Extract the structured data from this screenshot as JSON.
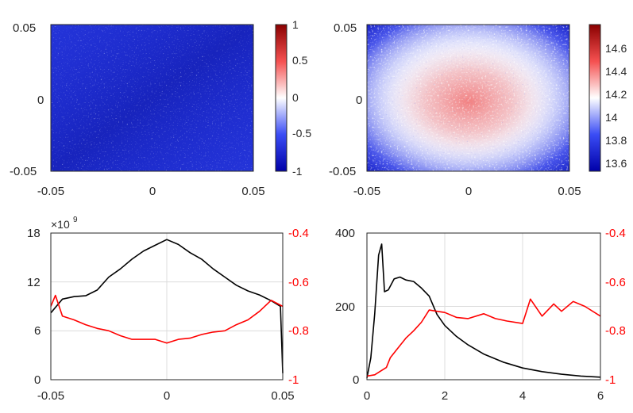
{
  "chart_data": [
    {
      "type": "heatmap",
      "panel": "top-left",
      "x_ticks": [
        "-0.05",
        "0",
        "0.05"
      ],
      "y_ticks": [
        "0.05",
        "0",
        "-0.05"
      ],
      "xlim": [
        -0.05,
        0.05
      ],
      "ylim": [
        -0.05,
        0.05
      ],
      "colorbar": {
        "range": [
          -1,
          1
        ],
        "ticks": [
          "1",
          "0.5",
          "0",
          "-0.5",
          "-1"
        ],
        "colormap": "blue-white-red"
      },
      "description_values": {
        "background": -0.85,
        "dark_band_center": -0.95
      }
    },
    {
      "type": "heatmap",
      "panel": "top-right",
      "x_ticks": [
        "-0.05",
        "0",
        "0.05"
      ],
      "y_ticks": [
        "0.05",
        "0",
        "-0.05"
      ],
      "xlim": [
        -0.05,
        0.05
      ],
      "ylim": [
        -0.05,
        0.05
      ],
      "colorbar": {
        "range": [
          13.5,
          14.8
        ],
        "ticks": [
          "14.6",
          "14.4",
          "14.2",
          "14",
          "13.8",
          "13.6"
        ],
        "colormap": "blue-white-red"
      },
      "description_values": {
        "center_peak": 14.45,
        "edge": 13.65
      }
    },
    {
      "type": "line",
      "panel": "bottom-left",
      "x_ticks": [
        "-0.05",
        "0",
        "0.05"
      ],
      "xlim": [
        -0.05,
        0.05
      ],
      "left_axis": {
        "ticks": [
          "18",
          "12",
          "6",
          "0"
        ],
        "ylim": [
          0,
          18
        ],
        "exponent_label": "×10",
        "exponent_power": "9",
        "color": "#000000"
      },
      "right_axis": {
        "ticks": [
          "-0.4",
          "-0.6",
          "-0.8",
          "-1"
        ],
        "ylim": [
          -1,
          -0.4
        ],
        "color": "#ff0000"
      },
      "series": [
        {
          "name": "left",
          "color": "#000000",
          "x": [
            -0.05,
            -0.045,
            -0.04,
            -0.035,
            -0.03,
            -0.025,
            -0.02,
            -0.015,
            -0.01,
            -0.005,
            0,
            0.005,
            0.01,
            0.015,
            0.02,
            0.025,
            0.03,
            0.035,
            0.04,
            0.045,
            0.049,
            0.05
          ],
          "values": [
            8.2,
            9.9,
            10.2,
            10.3,
            11.0,
            12.6,
            13.6,
            14.8,
            15.8,
            16.5,
            17.2,
            16.6,
            15.6,
            14.8,
            13.6,
            12.6,
            11.6,
            10.9,
            10.4,
            9.7,
            9.0,
            0.8
          ]
        },
        {
          "name": "right",
          "color": "#ff0000",
          "x": [
            -0.05,
            -0.048,
            -0.045,
            -0.04,
            -0.035,
            -0.03,
            -0.025,
            -0.02,
            -0.015,
            -0.01,
            -0.005,
            0,
            0.005,
            0.01,
            0.015,
            0.02,
            0.025,
            0.03,
            0.035,
            0.04,
            0.045,
            0.05
          ],
          "values": [
            -0.7,
            -0.655,
            -0.74,
            -0.755,
            -0.775,
            -0.79,
            -0.8,
            -0.82,
            -0.835,
            -0.835,
            -0.835,
            -0.85,
            -0.835,
            -0.83,
            -0.815,
            -0.805,
            -0.8,
            -0.775,
            -0.755,
            -0.72,
            -0.675,
            -0.7
          ]
        }
      ]
    },
    {
      "type": "line",
      "panel": "bottom-right",
      "x_ticks": [
        "0",
        "2",
        "4",
        "6"
      ],
      "xlim": [
        0,
        6
      ],
      "left_axis": {
        "ticks": [
          "400",
          "200",
          "0"
        ],
        "ylim": [
          0,
          400
        ],
        "color": "#000000"
      },
      "right_axis": {
        "ticks": [
          "-0.4",
          "-0.6",
          "-0.8",
          "-1"
        ],
        "ylim": [
          -1,
          -0.4
        ],
        "color": "#ff0000"
      },
      "series": [
        {
          "name": "left",
          "color": "#000000",
          "x": [
            0,
            0.1,
            0.2,
            0.3,
            0.38,
            0.45,
            0.55,
            0.7,
            0.85,
            1.0,
            1.2,
            1.4,
            1.6,
            1.8,
            2.0,
            2.3,
            2.6,
            3.0,
            3.5,
            4.0,
            4.5,
            5.0,
            5.5,
            6.0
          ],
          "values": [
            5,
            60,
            180,
            340,
            370,
            240,
            245,
            275,
            280,
            272,
            268,
            250,
            228,
            178,
            148,
            118,
            95,
            70,
            48,
            32,
            22,
            15,
            10,
            7
          ]
        },
        {
          "name": "right",
          "color": "#ff0000",
          "x": [
            0,
            0.2,
            0.35,
            0.5,
            0.6,
            0.8,
            1.0,
            1.2,
            1.4,
            1.6,
            1.8,
            2.0,
            2.3,
            2.6,
            3.0,
            3.3,
            3.6,
            4.0,
            4.2,
            4.5,
            4.8,
            5.0,
            5.3,
            5.6,
            6.0
          ],
          "values": [
            -0.985,
            -0.98,
            -0.965,
            -0.95,
            -0.91,
            -0.87,
            -0.83,
            -0.8,
            -0.765,
            -0.715,
            -0.72,
            -0.725,
            -0.745,
            -0.75,
            -0.73,
            -0.75,
            -0.76,
            -0.77,
            -0.67,
            -0.74,
            -0.69,
            -0.72,
            -0.68,
            -0.7,
            -0.74
          ]
        }
      ]
    }
  ]
}
